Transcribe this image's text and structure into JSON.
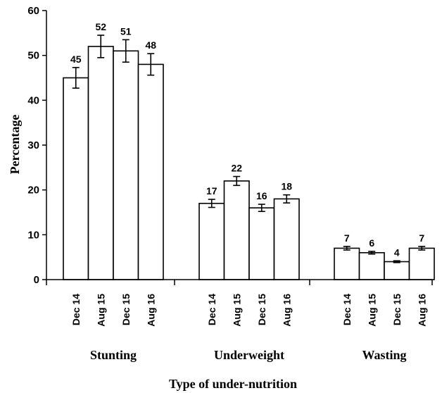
{
  "chart_data": {
    "type": "bar",
    "title": "",
    "xlabel": "Type of under-nutrition",
    "ylabel": "Percentage",
    "ylim": [
      0,
      60
    ],
    "yticks": [
      0,
      10,
      20,
      30,
      40,
      50,
      60
    ],
    "groups": [
      {
        "name": "Stunting",
        "bars": [
          {
            "category": "Dec 14",
            "value": 45,
            "error": 2.3
          },
          {
            "category": "Aug 15",
            "value": 52,
            "error": 2.5
          },
          {
            "category": "Dec 15",
            "value": 51,
            "error": 2.5
          },
          {
            "category": "Aug 16",
            "value": 48,
            "error": 2.4
          }
        ]
      },
      {
        "name": "Underweight",
        "bars": [
          {
            "category": "Dec 14",
            "value": 17,
            "error": 0.9
          },
          {
            "category": "Aug 15",
            "value": 22,
            "error": 1.0
          },
          {
            "category": "Dec 15",
            "value": 16,
            "error": 0.8
          },
          {
            "category": "Aug 16",
            "value": 18,
            "error": 0.9
          }
        ]
      },
      {
        "name": "Wasting",
        "bars": [
          {
            "category": "Dec 14",
            "value": 7,
            "error": 0.4
          },
          {
            "category": "Aug 15",
            "value": 6,
            "error": 0.3
          },
          {
            "category": "Dec 15",
            "value": 4,
            "error": 0.2
          },
          {
            "category": "Aug 16",
            "value": 7,
            "error": 0.4
          }
        ]
      }
    ],
    "grid": false,
    "legend": "none",
    "bar_fill": "#ffffff",
    "bar_stroke": "#000000"
  }
}
